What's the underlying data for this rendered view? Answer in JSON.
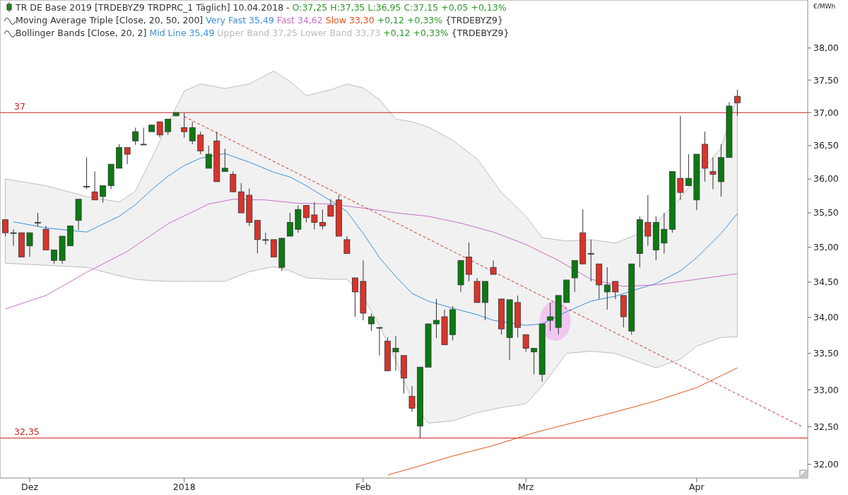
{
  "chart_data": {
    "type": "candlestick",
    "title": "TR DE Base 2019 [TRDEBYZ9 TRDPRC_1 Täglich] 10.04.2018 -",
    "subtitle": "O:37,25 H:37,35 L:36,95 C:37,15 +0,05 +0,13%",
    "ylabel": "€/MWh",
    "annotations": [
      "Moving Average Triple [Close, 20, 50, 200]",
      "+0,12 +0,33% {TRDEBYZ9}",
      "Bollinger Bands [Close, 20, 2]",
      "Mid Line 35,49",
      "Upper Band 37,25",
      "Lower Band 33,73",
      "+0,12 +0,33% {TRDEBYZ9}"
    ],
    "categories": [
      null,
      null,
      null,
      "Dez",
      null,
      null,
      null,
      null,
      null,
      null,
      null,
      null,
      null,
      null,
      null,
      null,
      null,
      null,
      null,
      null,
      null,
      null,
      "2018",
      null,
      null,
      null,
      null,
      null,
      null,
      null,
      null,
      null,
      null,
      null,
      null,
      null,
      null,
      null,
      null,
      null,
      null,
      null,
      null,
      null,
      "Feb",
      null,
      null,
      null,
      null,
      null,
      null,
      null,
      null,
      null,
      null,
      null,
      null,
      null,
      null,
      null,
      null,
      null,
      null,
      null,
      "Mrz",
      null,
      null,
      null,
      null,
      null,
      null,
      null,
      null,
      null,
      null,
      null,
      null,
      null,
      null,
      null,
      null,
      null,
      null,
      null,
      null,
      "Apr",
      null,
      null,
      null,
      null,
      null,
      null,
      null,
      null,
      null,
      null,
      null,
      null,
      null
    ],
    "ohlc": [
      [
        35.4,
        35.4,
        35.16,
        35.21
      ],
      [
        35.21,
        35.26,
        35.02,
        35.21
      ],
      [
        35.21,
        35.21,
        34.86,
        34.86
      ],
      [
        35.02,
        35.21,
        34.86,
        35.21
      ],
      [
        35.36,
        35.5,
        35.3,
        35.36
      ],
      [
        35.26,
        35.31,
        34.96,
        34.96
      ],
      [
        34.81,
        34.96,
        34.76,
        34.96
      ],
      [
        34.81,
        35.16,
        34.76,
        35.16
      ],
      [
        35.02,
        35.31,
        35.02,
        35.31
      ],
      [
        35.39,
        35.7,
        35.25,
        35.7
      ],
      [
        35.89,
        36.32,
        35.85,
        35.89
      ],
      [
        35.81,
        36.11,
        35.69,
        35.69
      ],
      [
        35.74,
        35.9,
        35.65,
        35.9
      ],
      [
        35.9,
        36.22,
        35.85,
        36.22
      ],
      [
        36.16,
        36.52,
        36.16,
        36.47
      ],
      [
        36.47,
        36.47,
        36.22,
        36.37
      ],
      [
        36.57,
        36.77,
        36.51,
        36.71
      ],
      [
        36.52,
        36.77,
        36.52,
        36.52
      ],
      [
        36.71,
        36.81,
        36.71,
        36.81
      ],
      [
        36.86,
        36.86,
        36.62,
        36.66
      ],
      [
        36.71,
        36.9,
        36.66,
        36.9
      ],
      [
        36.95,
        37.0,
        36.95,
        37.0
      ],
      [
        36.77,
        36.99,
        36.62,
        36.71
      ],
      [
        36.57,
        36.86,
        36.52,
        36.77
      ],
      [
        36.66,
        36.71,
        36.37,
        36.42
      ],
      [
        36.16,
        36.5,
        36.16,
        36.37
      ],
      [
        36.57,
        36.71,
        35.96,
        35.96
      ],
      [
        36.11,
        36.45,
        36.11,
        36.16
      ],
      [
        36.07,
        36.11,
        35.81,
        35.81
      ],
      [
        35.81,
        35.94,
        35.5,
        35.5
      ],
      [
        35.76,
        35.86,
        35.31,
        35.36
      ],
      [
        35.39,
        35.39,
        34.91,
        35.11
      ],
      [
        35.11,
        35.21,
        35.04,
        35.11
      ],
      [
        35.11,
        35.11,
        34.86,
        34.86
      ],
      [
        34.71,
        35.13,
        34.66,
        35.13
      ],
      [
        35.16,
        35.5,
        35.16,
        35.36
      ],
      [
        35.26,
        35.61,
        35.21,
        35.55
      ],
      [
        35.61,
        35.61,
        35.36,
        35.43
      ],
      [
        35.47,
        35.66,
        35.26,
        35.36
      ],
      [
        35.36,
        35.55,
        35.26,
        35.31
      ],
      [
        35.61,
        35.7,
        35.45,
        35.45
      ],
      [
        35.69,
        35.76,
        35.16,
        35.16
      ],
      [
        35.11,
        35.16,
        34.91,
        34.91
      ],
      [
        34.56,
        34.56,
        34.01,
        34.36
      ],
      [
        34.51,
        34.81,
        33.96,
        34.06
      ],
      [
        33.91,
        34.06,
        33.81,
        34.01
      ],
      [
        33.86,
        33.86,
        33.47,
        33.86
      ],
      [
        33.67,
        33.72,
        33.26,
        33.26
      ],
      [
        33.52,
        33.74,
        33.26,
        33.57
      ],
      [
        33.47,
        33.47,
        32.95,
        33.16
      ],
      [
        32.91,
        33.05,
        32.7,
        32.75
      ],
      [
        32.51,
        33.31,
        32.35,
        33.31
      ],
      [
        33.31,
        33.91,
        33.31,
        33.91
      ],
      [
        33.91,
        34.26,
        33.71,
        33.96
      ],
      [
        34.01,
        34.11,
        33.62,
        33.62
      ],
      [
        33.76,
        34.16,
        33.68,
        34.11
      ],
      [
        34.46,
        34.81,
        34.36,
        34.81
      ],
      [
        34.86,
        35.07,
        34.51,
        34.61
      ],
      [
        34.51,
        34.56,
        34.21,
        34.21
      ],
      [
        34.21,
        34.51,
        33.96,
        34.51
      ],
      [
        34.71,
        34.81,
        34.61,
        34.61
      ],
      [
        34.26,
        34.26,
        33.76,
        33.84
      ],
      [
        33.72,
        34.25,
        33.41,
        34.25
      ],
      [
        34.21,
        34.31,
        33.72,
        33.86
      ],
      [
        33.76,
        33.76,
        33.52,
        33.57
      ],
      [
        33.52,
        33.57,
        33.21,
        33.57
      ],
      [
        33.21,
        33.91,
        33.11,
        33.91
      ],
      [
        33.96,
        34.21,
        33.81,
        34.01
      ],
      [
        33.86,
        34.31,
        33.76,
        34.31
      ],
      [
        34.21,
        34.53,
        34.21,
        34.53
      ],
      [
        34.56,
        34.81,
        34.36,
        34.81
      ],
      [
        35.21,
        35.55,
        34.76,
        34.76
      ],
      [
        34.91,
        35.11,
        34.51,
        34.91
      ],
      [
        34.76,
        34.76,
        34.26,
        34.46
      ],
      [
        34.36,
        34.71,
        34.11,
        34.46
      ],
      [
        34.51,
        34.51,
        34.26,
        34.36
      ],
      [
        34.31,
        34.31,
        33.86,
        34.01
      ],
      [
        33.81,
        34.76,
        33.76,
        34.76
      ],
      [
        34.91,
        35.45,
        34.71,
        35.4
      ],
      [
        35.36,
        35.76,
        35.02,
        35.16
      ],
      [
        34.96,
        35.45,
        34.81,
        35.36
      ],
      [
        35.06,
        35.5,
        34.91,
        35.26
      ],
      [
        35.26,
        36.11,
        35.21,
        36.11
      ],
      [
        36.01,
        36.95,
        35.69,
        35.8
      ],
      [
        35.9,
        36.37,
        35.9,
        36.01
      ],
      [
        35.69,
        36.37,
        35.54,
        36.37
      ],
      [
        36.52,
        36.71,
        35.96,
        36.16
      ],
      [
        36.11,
        36.32,
        35.85,
        36.07
      ],
      [
        35.96,
        36.52,
        35.74,
        36.32
      ],
      [
        36.32,
        37.16,
        36.32,
        37.1
      ],
      [
        37.25,
        37.35,
        36.95,
        37.15
      ],
      null,
      null,
      null,
      null,
      null,
      null,
      null,
      null
    ],
    "series": [
      {
        "type": "line",
        "name": "Very Fast 35,49",
        "color": "#3b8fd8",
        "values": [
          null,
          35.37,
          null,
          null,
          null,
          35.28,
          null,
          null,
          null,
          null,
          35.22,
          null,
          null,
          null,
          35.45,
          null,
          35.62,
          null,
          35.84,
          null,
          36.04,
          null,
          36.2,
          null,
          36.31,
          null,
          null,
          36.38,
          null,
          null,
          36.25,
          null,
          null,
          36.1,
          null,
          36.03,
          null,
          35.9,
          null,
          null,
          35.68,
          null,
          35.52,
          null,
          35.2,
          null,
          34.85,
          null,
          34.58,
          null,
          34.34,
          null,
          34.23,
          null,
          null,
          34.13,
          null,
          null,
          34.04,
          null,
          33.96,
          null,
          null,
          null,
          33.89,
          null,
          33.91,
          null,
          null,
          34.08,
          null,
          null,
          34.23,
          null,
          null,
          34.3,
          null,
          null,
          34.41,
          null,
          34.48,
          null,
          null,
          34.66,
          null,
          34.85,
          null,
          null,
          35.2,
          null,
          35.49,
          null,
          null,
          null,
          null,
          null,
          null,
          null,
          null
        ],
        "upper": [
          36.0,
          null,
          null,
          null,
          null,
          35.9,
          null,
          null,
          null,
          null,
          35.74,
          null,
          null,
          null,
          35.66,
          null,
          35.82,
          null,
          36.31,
          null,
          36.83,
          null,
          37.33,
          null,
          37.44,
          null,
          null,
          37.37,
          null,
          null,
          37.44,
          null,
          null,
          37.64,
          null,
          37.48,
          null,
          37.26,
          null,
          null,
          37.35,
          null,
          37.44,
          null,
          37.38,
          null,
          37.2,
          null,
          36.9,
          null,
          36.86,
          null,
          36.78,
          null,
          null,
          36.58,
          null,
          null,
          36.3,
          null,
          null,
          35.8,
          null,
          null,
          35.45,
          null,
          35.14,
          null,
          null,
          35.09,
          null,
          null,
          35.11,
          null,
          null,
          35.06,
          null,
          null,
          35.2,
          null,
          35.35,
          null,
          null,
          35.72,
          null,
          36.03,
          null,
          null,
          36.47,
          null,
          37.25,
          null,
          null,
          null,
          null,
          null,
          null,
          null,
          null
        ],
        "lower": [
          34.77,
          null,
          null,
          null,
          null,
          34.74,
          null,
          null,
          null,
          null,
          34.71,
          null,
          null,
          null,
          34.59,
          null,
          34.54,
          null,
          34.52,
          null,
          34.51,
          null,
          34.51,
          null,
          34.51,
          null,
          null,
          34.51,
          null,
          null,
          34.65,
          null,
          null,
          34.72,
          null,
          34.66,
          null,
          34.56,
          null,
          null,
          34.54,
          null,
          34.54,
          null,
          34.29,
          null,
          33.89,
          null,
          33.4,
          null,
          32.86,
          null,
          32.55,
          null,
          null,
          32.58,
          null,
          null,
          32.69,
          null,
          null,
          32.76,
          null,
          null,
          32.81,
          null,
          33.05,
          null,
          null,
          33.5,
          null,
          null,
          33.53,
          null,
          null,
          33.5,
          null,
          null,
          33.38,
          null,
          33.3,
          null,
          null,
          33.42,
          null,
          33.6,
          null,
          null,
          33.72,
          null,
          33.73,
          null,
          null,
          null,
          null,
          null,
          null,
          null,
          null
        ]
      },
      {
        "type": "line",
        "name": "Fast 34,62",
        "color": "#c86ec8",
        "values": [
          34.12,
          null,
          null,
          null,
          null,
          34.31,
          null,
          null,
          null,
          null,
          34.64,
          null,
          null,
          null,
          null,
          34.94,
          null,
          null,
          null,
          null,
          35.34,
          null,
          null,
          null,
          null,
          35.63,
          null,
          null,
          35.7,
          null,
          null,
          null,
          35.69,
          null,
          null,
          null,
          35.64,
          null,
          null,
          null,
          35.63,
          null,
          null,
          null,
          35.57,
          null,
          null,
          null,
          35.5,
          null,
          null,
          null,
          35.45,
          null,
          null,
          null,
          35.35,
          null,
          null,
          null,
          35.22,
          null,
          null,
          null,
          35.04,
          null,
          null,
          null,
          34.81,
          null,
          null,
          null,
          34.54,
          null,
          null,
          null,
          34.44,
          null,
          null,
          null,
          34.46,
          null,
          null,
          null,
          null,
          34.54,
          null,
          null,
          null,
          null,
          34.62,
          null,
          null,
          null,
          null,
          null,
          null,
          null,
          null
        ]
      },
      {
        "type": "line",
        "name": "Slow 33,30",
        "color": "#e0541a",
        "values": [
          null,
          null,
          null,
          null,
          null,
          null,
          null,
          null,
          null,
          null,
          null,
          null,
          null,
          null,
          null,
          null,
          null,
          null,
          null,
          null,
          null,
          null,
          null,
          null,
          null,
          null,
          null,
          null,
          null,
          null,
          null,
          null,
          null,
          null,
          null,
          null,
          null,
          null,
          null,
          null,
          null,
          null,
          null,
          null,
          null,
          null,
          null,
          31.86,
          null,
          null,
          31.95,
          null,
          null,
          null,
          null,
          32.11,
          null,
          null,
          null,
          null,
          32.25,
          null,
          null,
          null,
          null,
          32.42,
          null,
          null,
          null,
          null,
          32.56,
          null,
          null,
          null,
          null,
          32.7,
          null,
          null,
          null,
          null,
          32.85,
          null,
          null,
          null,
          null,
          33.03,
          null,
          null,
          null,
          null,
          33.3,
          null,
          null,
          null,
          null,
          null,
          null,
          null,
          null
        ]
      },
      {
        "type": "line",
        "color": "#d42a2a",
        "line_style": "dashed",
        "values": [
          null,
          null,
          null,
          null,
          null,
          null,
          null,
          null,
          null,
          null,
          null,
          null,
          null,
          null,
          null,
          null,
          null,
          null,
          null,
          null,
          null,
          null,
          36.94,
          null,
          null,
          null,
          null,
          null,
          null,
          null,
          null,
          null,
          null,
          null,
          null,
          null,
          null,
          null,
          null,
          null,
          null,
          null,
          null,
          null,
          null,
          null,
          null,
          null,
          null,
          null,
          null,
          null,
          null,
          null,
          null,
          null,
          null,
          null,
          null,
          null,
          null,
          null,
          null,
          null,
          null,
          null,
          null,
          null,
          null,
          null,
          null,
          null,
          null,
          null,
          null,
          null,
          null,
          null,
          null,
          null,
          null,
          null,
          null,
          null,
          null,
          null,
          null,
          null,
          null,
          null,
          null,
          null,
          null,
          null,
          null,
          null,
          null,
          null,
          32.5
        ]
      }
    ],
    "ref_lines": [
      {
        "axis": "y",
        "value": 37,
        "label": "37",
        "color": "#cc1f1f"
      },
      {
        "axis": "y",
        "value": 32.35,
        "label": "32,35",
        "color": "#cc1f1f"
      }
    ],
    "log": true,
    "ylim": [
      31.82,
      38.76
    ],
    "yticks": [
      {
        "value": 32,
        "label": "32,00"
      },
      {
        "value": 32.5,
        "label": "32,50"
      },
      {
        "value": 33,
        "label": "33,00"
      },
      {
        "value": 33.5,
        "label": "33,50"
      },
      {
        "value": 34,
        "label": "34,00"
      },
      {
        "value": 34.5,
        "label": "34,50"
      },
      {
        "value": 35,
        "label": "35,00"
      },
      {
        "value": 35.5,
        "label": "35,50"
      },
      {
        "value": 36,
        "label": "36,00"
      },
      {
        "value": 36.5,
        "label": "36,50"
      },
      {
        "value": 37,
        "label": "37,00"
      },
      {
        "value": 37.5,
        "label": "37,50"
      },
      {
        "value": 38,
        "label": "38,00"
      }
    ],
    "legend": "top left"
  }
}
